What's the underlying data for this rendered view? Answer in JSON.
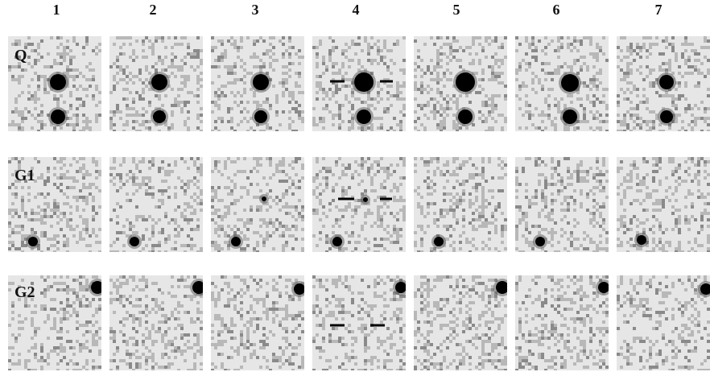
{
  "columns": [
    "1",
    "2",
    "3",
    "4",
    "5",
    "6",
    "7"
  ],
  "rows": [
    {
      "label": "Q",
      "key": "q"
    },
    {
      "label": "G1",
      "key": "g1"
    },
    {
      "label": "G2",
      "key": "g2"
    }
  ],
  "colors": {
    "background": "#ffffff",
    "noise_light": "#e6e6e6",
    "noise_dark": "#8a8a8a",
    "source": "#000000"
  }
}
